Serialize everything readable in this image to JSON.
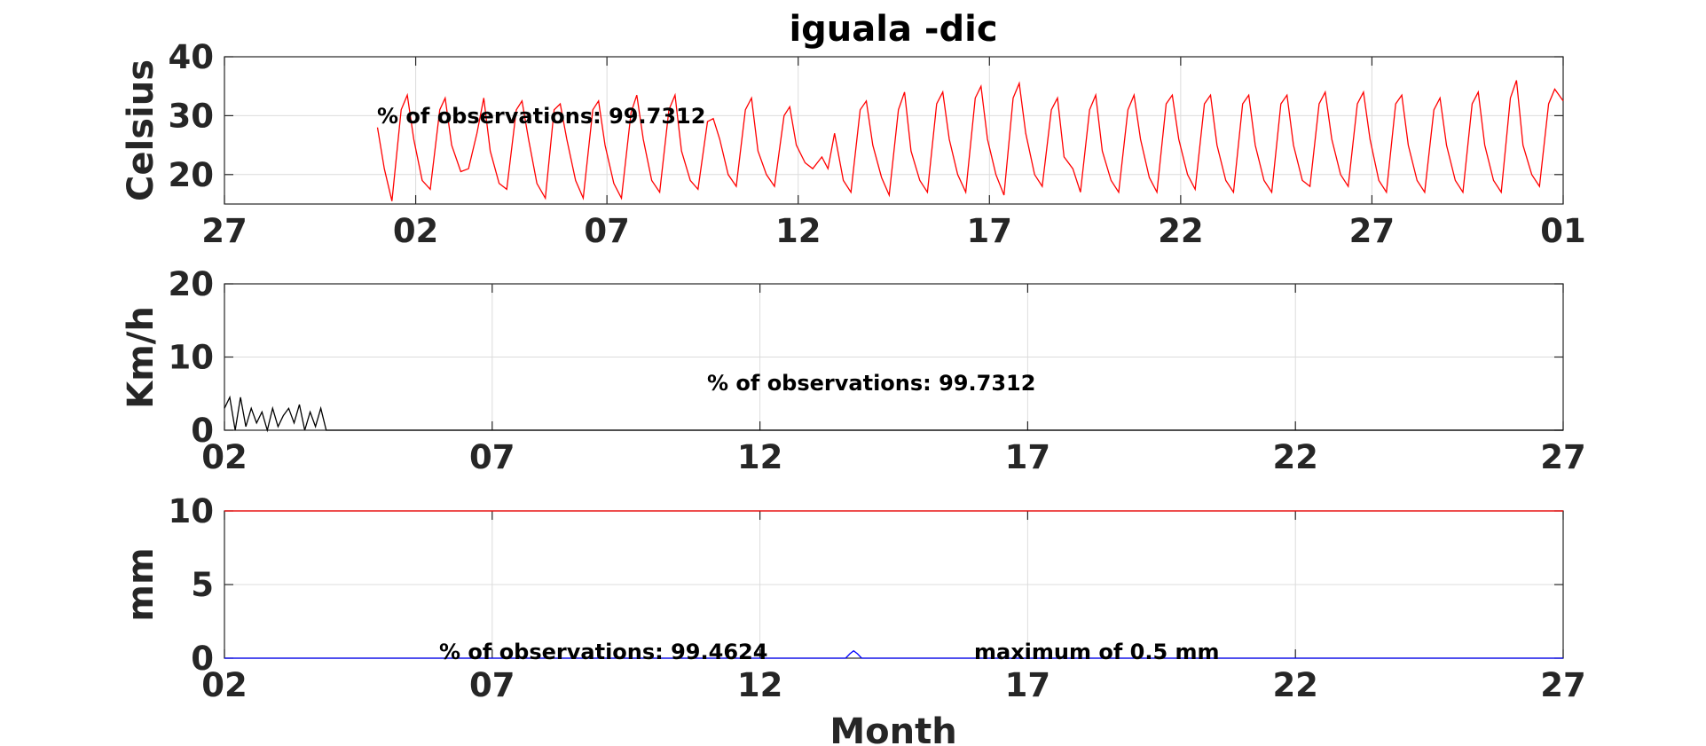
{
  "chart_data": [
    {
      "type": "line",
      "title": "iguala -dic",
      "ylabel": "Celsius",
      "xlabel": "",
      "xlim": [
        0,
        35
      ],
      "ylim": [
        15,
        40
      ],
      "x_ticks": [
        0,
        5,
        10,
        15,
        20,
        25,
        30,
        35
      ],
      "x_tick_labels": [
        "27",
        "02",
        "07",
        "12",
        "17",
        "22",
        "27",
        "01"
      ],
      "y_ticks": [
        20,
        30,
        40
      ],
      "y_tick_labels": [
        "20",
        "30",
        "40"
      ],
      "grid": true,
      "annotation": "% of observations: 99.7312",
      "series": [
        {
          "color": "#ff0000",
          "x": [
            4.0,
            4.18,
            4.38,
            4.62,
            4.78,
            4.95,
            5.17,
            5.38,
            5.63,
            5.77,
            5.94,
            6.18,
            6.38,
            6.6,
            6.78,
            6.95,
            7.18,
            7.38,
            7.63,
            7.78,
            7.95,
            8.17,
            8.39,
            8.62,
            8.78,
            8.95,
            9.18,
            9.38,
            9.63,
            9.78,
            9.95,
            10.18,
            10.38,
            10.63,
            10.78,
            10.95,
            11.17,
            11.38,
            11.62,
            11.78,
            11.95,
            12.18,
            12.38,
            12.63,
            12.78,
            12.95,
            13.17,
            13.38,
            13.62,
            13.78,
            13.95,
            14.17,
            14.38,
            14.63,
            14.78,
            14.95,
            15.18,
            15.38,
            15.62,
            15.78,
            15.95,
            16.18,
            16.38,
            16.62,
            16.78,
            16.95,
            17.18,
            17.38,
            17.62,
            17.78,
            17.95,
            18.18,
            18.38,
            18.62,
            18.78,
            18.95,
            19.17,
            19.38,
            19.63,
            19.78,
            19.95,
            20.17,
            20.38,
            20.62,
            20.78,
            20.95,
            21.18,
            21.38,
            21.62,
            21.78,
            21.95,
            22.18,
            22.38,
            22.62,
            22.78,
            22.95,
            23.18,
            23.38,
            23.62,
            23.78,
            23.95,
            24.18,
            24.38,
            24.62,
            24.78,
            24.95,
            25.18,
            25.38,
            25.62,
            25.78,
            25.95,
            26.18,
            26.38,
            26.62,
            26.78,
            26.95,
            27.18,
            27.38,
            27.62,
            27.78,
            27.95,
            28.18,
            28.38,
            28.62,
            28.78,
            28.95,
            29.18,
            29.38,
            29.62,
            29.78,
            29.95,
            30.18,
            30.38,
            30.62,
            30.78,
            30.95,
            31.18,
            31.38,
            31.62,
            31.78,
            31.95,
            32.18,
            32.38,
            32.62,
            32.78,
            32.95,
            33.18,
            33.38,
            33.62,
            33.78,
            33.95,
            34.18,
            34.38,
            34.62,
            34.78,
            35.0
          ],
          "values": [
            28,
            21,
            15.5,
            31,
            33.5,
            26,
            19,
            17.5,
            31,
            33,
            25,
            20.5,
            21,
            27,
            33,
            24,
            18.5,
            17.5,
            31,
            32.5,
            26,
            18.5,
            16,
            31,
            32,
            26,
            19,
            16,
            31,
            32.5,
            25,
            18.5,
            16,
            30.5,
            33.5,
            26,
            19,
            17,
            31,
            33.5,
            24,
            19,
            17.5,
            29,
            29.5,
            26,
            20,
            18,
            31,
            33,
            24,
            20,
            18,
            30,
            31.5,
            25,
            22,
            21,
            23,
            21,
            27,
            19,
            17,
            31,
            32.5,
            25,
            19.5,
            16.5,
            31,
            34,
            24,
            19,
            17,
            32,
            34,
            26,
            20,
            17,
            33,
            35,
            26,
            20,
            16.5,
            33,
            35.5,
            27,
            20,
            18,
            31,
            33,
            23,
            21,
            17,
            31,
            33.5,
            24,
            19,
            17,
            31,
            33.5,
            26,
            19.5,
            17,
            32,
            33.5,
            26,
            20,
            17.5,
            32,
            33.5,
            25,
            19,
            17,
            32,
            33.5,
            25,
            19,
            17,
            32,
            33.5,
            25,
            19,
            18,
            32,
            34,
            26,
            20,
            18,
            32,
            34,
            26,
            19,
            17,
            32,
            33.5,
            25,
            19,
            17,
            31,
            33,
            25,
            19,
            17,
            32,
            34,
            25,
            19,
            17,
            33,
            36,
            25,
            20,
            18,
            32,
            34.5,
            32.5
          ]
        }
      ]
    },
    {
      "type": "line",
      "ylabel": "Km/h",
      "xlabel": "",
      "xlim": [
        0,
        25
      ],
      "ylim": [
        0,
        20
      ],
      "x_ticks": [
        0,
        5,
        10,
        15,
        20,
        25
      ],
      "x_tick_labels": [
        "02",
        "07",
        "12",
        "17",
        "22",
        "27"
      ],
      "y_ticks": [
        0,
        10,
        20
      ],
      "y_tick_labels": [
        "0",
        "10",
        "20"
      ],
      "grid": true,
      "annotation": "% of observations: 99.7312",
      "series": [
        {
          "color": "#000000",
          "x": [
            0.0,
            0.1,
            0.2,
            0.3,
            0.4,
            0.5,
            0.6,
            0.7,
            0.8,
            0.9,
            1.0,
            1.1,
            1.2,
            1.3,
            1.4,
            1.5,
            1.6,
            1.7,
            1.8,
            1.9,
            2.0,
            2.1,
            2.2,
            2.3,
            2.4,
            2.5,
            2.6,
            2.7,
            2.8,
            2.9,
            3.0,
            3.1,
            3.2,
            3.3,
            3.4,
            3.5,
            3.6,
            3.7,
            3.8,
            3.9,
            4.0,
            4.1,
            4.2,
            4.3,
            4.4,
            4.5,
            4.6,
            4.7,
            4.8,
            4.9,
            5.0,
            5.1,
            5.2,
            5.3,
            5.4,
            5.5,
            5.6,
            5.7,
            5.8,
            5.9,
            6.0,
            6.1,
            6.2,
            6.3,
            6.4,
            6.5,
            6.6,
            6.7,
            6.8,
            6.9,
            7.0,
            7.1,
            7.2,
            7.3,
            7.4,
            7.5,
            7.6,
            7.7,
            7.8,
            7.9,
            8.0,
            8.1,
            8.2,
            8.3,
            8.4,
            8.5,
            8.6,
            8.7,
            8.8,
            8.9,
            9.0,
            9.1,
            9.2,
            9.3,
            9.4,
            9.5,
            9.6,
            9.7,
            9.8,
            9.9,
            10.0,
            10.1,
            10.2,
            10.3,
            10.4,
            10.5,
            10.6,
            10.7,
            10.8,
            10.9,
            11.0,
            11.1,
            11.2,
            11.3,
            11.4,
            11.5,
            11.6,
            11.7,
            11.8,
            11.9,
            12.0,
            12.1,
            12.2,
            12.3,
            12.4,
            12.5,
            12.6,
            12.7,
            12.8,
            12.9,
            13.0,
            13.1,
            13.2,
            13.3,
            13.4,
            13.5,
            13.6,
            13.7,
            13.8,
            13.9,
            14.0,
            14.1,
            14.2,
            14.3,
            14.4,
            14.5,
            14.6,
            14.7,
            14.8,
            14.9,
            15.0,
            15.1,
            15.2,
            15.3,
            15.4,
            15.5,
            15.6,
            15.7,
            15.8,
            15.9,
            16.0,
            16.1,
            16.2,
            16.3,
            16.4,
            16.5,
            16.6,
            16.7,
            16.8,
            16.9,
            17.0,
            17.1,
            17.2,
            17.3,
            17.4,
            17.5,
            17.6,
            17.7,
            17.8,
            17.9,
            18.0,
            18.1,
            18.2,
            18.3,
            18.4,
            18.5,
            18.6,
            18.7,
            18.8,
            18.9,
            19.0,
            19.1,
            19.2,
            19.3,
            19.4,
            19.5,
            19.6,
            19.7,
            19.8,
            19.9,
            20.0,
            20.1,
            20.2,
            20.3,
            20.4,
            20.5,
            20.6,
            20.7,
            20.8,
            20.9,
            21.0,
            21.1,
            21.2,
            21.3,
            21.4,
            21.5,
            21.6,
            21.7,
            21.8,
            21.9,
            22.0,
            22.1,
            22.2,
            22.3,
            22.4,
            22.5,
            22.6,
            22.7,
            22.8,
            22.9,
            23.0,
            23.1,
            23.2,
            23.3,
            23.4,
            23.5,
            23.6,
            23.7,
            23.8,
            23.9,
            24.0,
            24.1,
            24.2,
            24.3,
            24.4,
            24.5,
            24.6,
            24.7,
            24.8,
            24.9,
            25.0
          ],
          "values": [
            3.0,
            4.5,
            0.0,
            4.5,
            0.5,
            3.0,
            1.0,
            2.5,
            0.0,
            3.0,
            0.5,
            2.0,
            3.0,
            1.0,
            3.5,
            0.0,
            2.5,
            0.5,
            3.0,
            0.0,
            0.0,
            0.0,
            0.0,
            0.0,
            0.0,
            0.0,
            0.0,
            0.0,
            0.0,
            0.0,
            0.0,
            0.0,
            0.0,
            0.0,
            0.0,
            0.0,
            0.0,
            0.0,
            0.0,
            0.0,
            0.0,
            0.0,
            0.0,
            0.0,
            0.0,
            0.0,
            0.0,
            0.0,
            0.0,
            0.0,
            0.0,
            0.0,
            0.0,
            0.0,
            0.0,
            0.0,
            0.0,
            0.0,
            0.0,
            0.0,
            0.0,
            0.0,
            0.0,
            0.0,
            0.0,
            0.0,
            0.0,
            0.0,
            0.0,
            0.0,
            0.0,
            0.0,
            0.0,
            0.0,
            0.0,
            0.0,
            0.0,
            0.0,
            0.0,
            0.0,
            0.0,
            0.0,
            0.0,
            0.0,
            0.0,
            0.0,
            0.0,
            0.0,
            0.0,
            0.0,
            0.0,
            0.0,
            0.0,
            0.0,
            0.0,
            0.0,
            0.0,
            0.0,
            0.0,
            0.0,
            0.0,
            0.0,
            0.0,
            0.0,
            0.0,
            0.0,
            0.0,
            0.0,
            0.0,
            0.0,
            0.0,
            0.0,
            0.0,
            0.0,
            0.0,
            0.0,
            0.0,
            0.0,
            0.0,
            0.0,
            0.0,
            0.0,
            0.0,
            0.0,
            0.0,
            0.0,
            0.0,
            0.0,
            0.0,
            0.0,
            0.0,
            0.0,
            0.0,
            0.0,
            0.0,
            0.0,
            0.0,
            0.0,
            0.0,
            0.0,
            0.0,
            0.0,
            0.0,
            0.0,
            0.0,
            0.0,
            0.0,
            0.0,
            0.0,
            0.0,
            0.0,
            0.0,
            0.0,
            0.0,
            0.0,
            0.0,
            0.0,
            0.0,
            0.0,
            0.0,
            0.0,
            0.0,
            0.0,
            0.0,
            0.0,
            0.0,
            0.0,
            0.0,
            0.0,
            0.0,
            0.0,
            0.0,
            0.0,
            0.0,
            0.0,
            0.0,
            0.0,
            0.0,
            0.0,
            0.0,
            0.0,
            0.0,
            0.0,
            0.0,
            0.0,
            0.0,
            0.0,
            0.0,
            0.0,
            0.0,
            0.0,
            0.0,
            0.0,
            0.0,
            0.0,
            0.0,
            0.0,
            0.0,
            0.0,
            0.0,
            0.0,
            0.0,
            0.0,
            0.0,
            0.0,
            0.0,
            0.0,
            0.0,
            0.0,
            0.0,
            0.0,
            0.0,
            0.0,
            0.0,
            0.0,
            0.0,
            0.0,
            0.0,
            0.0,
            0.0,
            0.0,
            0.0,
            0.0,
            0.0,
            0.0,
            0.0,
            0.0,
            0.0,
            0.0,
            0.0,
            0.0,
            0.0,
            0.0,
            0.0,
            0.0,
            0.0,
            0.0,
            0.0,
            0.0,
            0.0,
            0.0,
            0.0,
            0.0,
            0.0,
            0.0,
            0.0,
            0.0,
            0.0,
            0.0,
            0.0,
            0.0
          ]
        }
      ]
    },
    {
      "type": "line",
      "ylabel": "mm",
      "xlabel": "Month",
      "xlim": [
        0,
        25
      ],
      "ylim": [
        0,
        10
      ],
      "x_ticks": [
        0,
        5,
        10,
        15,
        20,
        25
      ],
      "x_tick_labels": [
        "02",
        "07",
        "12",
        "17",
        "22",
        "27"
      ],
      "y_ticks": [
        0,
        5,
        10
      ],
      "y_tick_labels": [
        "0",
        "5",
        "10"
      ],
      "grid": true,
      "annotations": [
        "% of observations: 99.4624",
        "maximum of 0.5 mm"
      ],
      "series": [
        {
          "color": "#ff0000",
          "x": [
            0,
            25
          ],
          "values": [
            10,
            10
          ]
        },
        {
          "color": "#0000ff",
          "x": [
            0,
            11.6,
            11.68,
            11.75,
            11.82,
            11.9,
            25
          ],
          "values": [
            0,
            0,
            0.3,
            0.5,
            0.3,
            0,
            0
          ]
        }
      ]
    }
  ]
}
